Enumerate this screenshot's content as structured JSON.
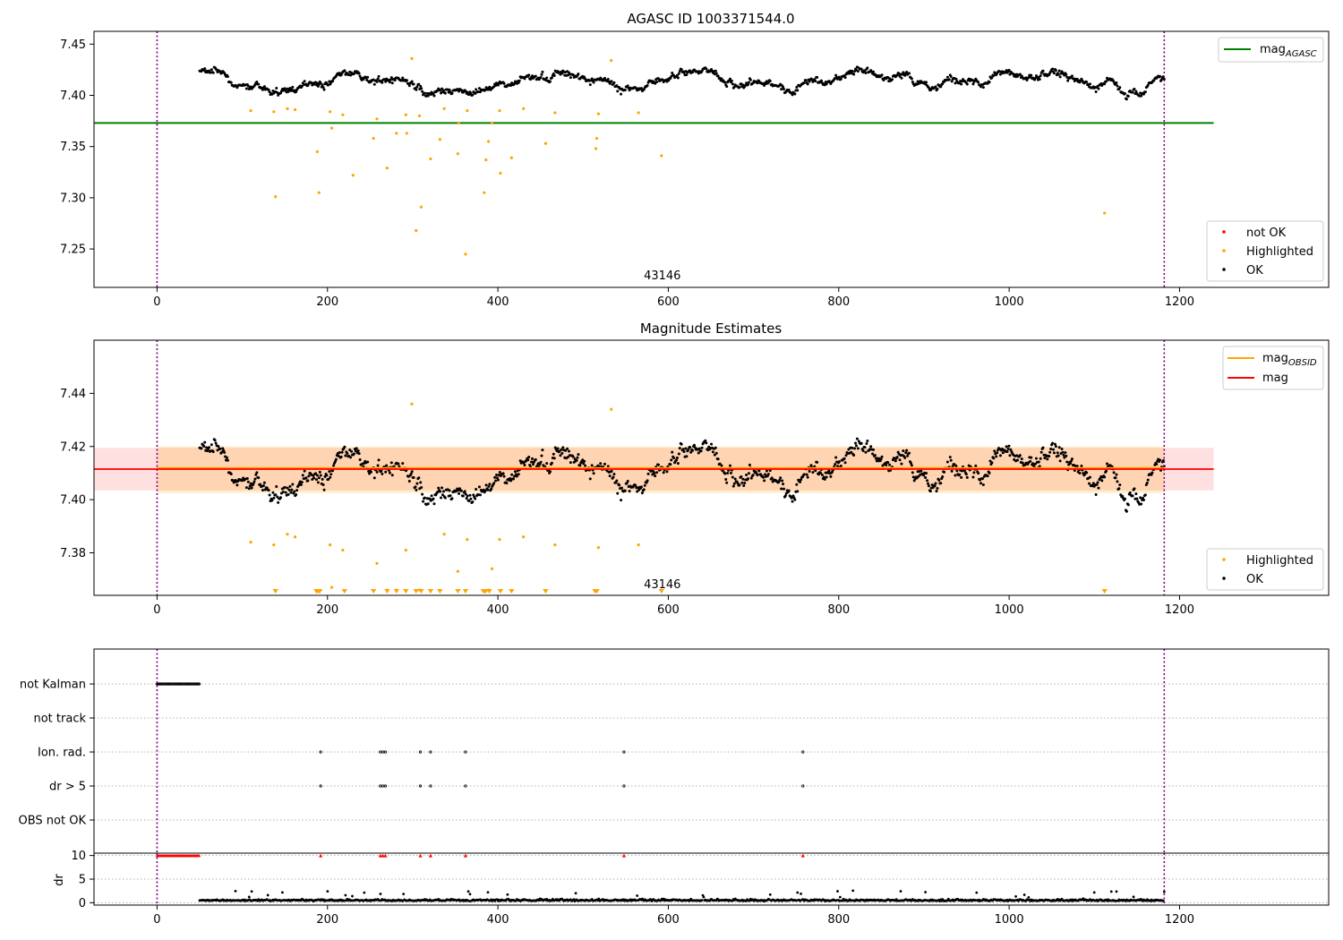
{
  "chart_data": [
    {
      "type": "scatter",
      "title": "AGASC ID 1003371544.0",
      "xlim": [
        -74,
        1375
      ],
      "ylim": [
        7.2125,
        7.4625
      ],
      "xticks": [
        0,
        200,
        400,
        600,
        800,
        1000,
        1200
      ],
      "yticks": [
        7.25,
        7.3,
        7.35,
        7.4,
        7.45
      ],
      "xtick_labels": [
        "0",
        "200",
        "400",
        "600",
        "800",
        "1000",
        "1200"
      ],
      "ytick_labels": [
        "7.25",
        "7.30",
        "7.35",
        "7.40",
        "7.45"
      ],
      "obsid_label": "43146",
      "obsid_label_x": 593,
      "obs_boundaries": [
        0,
        1182
      ],
      "mag_agasc": 7.373,
      "mag_agasc_xrange": [
        -74,
        1240
      ],
      "colors": {
        "ok": "#000000",
        "highlighted": "#ffa500",
        "not_ok": "#ff0000",
        "agasc_line": "#008000",
        "boundary": "#800080"
      },
      "legend_top": {
        "placement": "top-right",
        "entries": [
          {
            "label": "mag",
            "sub": "AGASC",
            "color": "#008000"
          }
        ]
      },
      "legend_bottom": {
        "placement": "lower-right",
        "entries": [
          {
            "label": "not OK",
            "color": "#ff0000"
          },
          {
            "label": "Highlighted",
            "color": "#ffa500"
          },
          {
            "label": "OK",
            "color": "#000000"
          }
        ]
      },
      "highlighted_points": [
        [
          110,
          7.385
        ],
        [
          137,
          7.384
        ],
        [
          139,
          7.301
        ],
        [
          153,
          7.387
        ],
        [
          162,
          7.386
        ],
        [
          188,
          7.345
        ],
        [
          190,
          7.305
        ],
        [
          203,
          7.384
        ],
        [
          205,
          7.368
        ],
        [
          218,
          7.381
        ],
        [
          230,
          7.322
        ],
        [
          254,
          7.358
        ],
        [
          258,
          7.377
        ],
        [
          270,
          7.329
        ],
        [
          281,
          7.363
        ],
        [
          292,
          7.381
        ],
        [
          293,
          7.363
        ],
        [
          299,
          7.436
        ],
        [
          304,
          7.268
        ],
        [
          308,
          7.38
        ],
        [
          310,
          7.291
        ],
        [
          321,
          7.338
        ],
        [
          332,
          7.357
        ],
        [
          337,
          7.387
        ],
        [
          353,
          7.343
        ],
        [
          354,
          7.373
        ],
        [
          362,
          7.245
        ],
        [
          364,
          7.385
        ],
        [
          384,
          7.305
        ],
        [
          386,
          7.337
        ],
        [
          389,
          7.355
        ],
        [
          393,
          7.373
        ],
        [
          402,
          7.385
        ],
        [
          403,
          7.324
        ],
        [
          416,
          7.339
        ],
        [
          430,
          7.387
        ],
        [
          456,
          7.353
        ],
        [
          467,
          7.383
        ],
        [
          515,
          7.348
        ],
        [
          516,
          7.358
        ],
        [
          518,
          7.382
        ],
        [
          533,
          7.434
        ],
        [
          565,
          7.383
        ],
        [
          592,
          7.341
        ],
        [
          1112,
          7.285
        ]
      ],
      "not_ok_points": [],
      "ok_base": 7.414
    },
    {
      "type": "scatter",
      "title": "Magnitude Estimates",
      "xlim": [
        -74,
        1375
      ],
      "ylim": [
        7.364,
        7.46
      ],
      "xticks": [
        0,
        200,
        400,
        600,
        800,
        1000,
        1200
      ],
      "yticks": [
        7.38,
        7.4,
        7.42,
        7.44
      ],
      "xtick_labels": [
        "0",
        "200",
        "400",
        "600",
        "800",
        "1000",
        "1200"
      ],
      "ytick_labels": [
        "7.38",
        "7.40",
        "7.42",
        "7.44"
      ],
      "obsid_label": "43146",
      "obsid_label_x": 593,
      "obs_boundaries": [
        0,
        1182
      ],
      "mag": 7.4115,
      "mag_band": [
        7.4035,
        7.4195
      ],
      "mag_xrange": [
        -74,
        1240
      ],
      "mag_obsid": 7.4115,
      "mag_obsid_band": [
        7.4025,
        7.42
      ],
      "mag_obsid_xrange": [
        0,
        1182
      ],
      "colors": {
        "ok": "#000000",
        "highlighted": "#ffa500",
        "mag": "#ff0000",
        "mag_obsid": "#ffa500",
        "boundary": "#800080"
      },
      "legend_top": {
        "placement": "top-right",
        "entries": [
          {
            "label": "mag",
            "sub": "OBSID",
            "color": "#ffa500"
          },
          {
            "label": "mag",
            "sub": "",
            "color": "#ff0000"
          }
        ]
      },
      "legend_bottom": {
        "placement": "lower-right",
        "entries": [
          {
            "label": "Highlighted",
            "color": "#ffa500"
          },
          {
            "label": "OK",
            "color": "#000000"
          }
        ]
      },
      "highlighted_points": [
        [
          110,
          7.384
        ],
        [
          137,
          7.383
        ],
        [
          153,
          7.387
        ],
        [
          162,
          7.386
        ],
        [
          203,
          7.383
        ],
        [
          205,
          7.367
        ],
        [
          218,
          7.381
        ],
        [
          258,
          7.376
        ],
        [
          270,
          7.366
        ],
        [
          281,
          7.366
        ],
        [
          292,
          7.381
        ],
        [
          299,
          7.436
        ],
        [
          308,
          7.366
        ],
        [
          337,
          7.387
        ],
        [
          353,
          7.373
        ],
        [
          364,
          7.385
        ],
        [
          389,
          7.366
        ],
        [
          393,
          7.374
        ],
        [
          402,
          7.385
        ],
        [
          430,
          7.386
        ],
        [
          467,
          7.383
        ],
        [
          518,
          7.382
        ],
        [
          533,
          7.434
        ],
        [
          565,
          7.383
        ]
      ],
      "below_range_markers": [
        139,
        187,
        188,
        190,
        191,
        220,
        254,
        270,
        281,
        292,
        304,
        310,
        321,
        332,
        353,
        362,
        383,
        384,
        386,
        390,
        403,
        416,
        456,
        514,
        516,
        592,
        1112
      ],
      "ok_base": 7.411
    },
    {
      "type": "scatter",
      "xlim": [
        -74,
        1375
      ],
      "xticks": [
        0,
        200,
        400,
        600,
        800,
        1000,
        1200
      ],
      "xtick_labels": [
        "0",
        "200",
        "400",
        "600",
        "800",
        "1000",
        "1200"
      ],
      "obs_boundaries": [
        0,
        1182
      ],
      "flag_categories": [
        "not Kalman",
        "not track",
        "Ion. rad.",
        "dr > 5",
        "OBS not OK"
      ],
      "flag_points": {
        "not Kalman": {
          "from": 0,
          "to": 50
        },
        "not track": [],
        "Ion. rad.": [
          192,
          262,
          265,
          268,
          309,
          321,
          362,
          548,
          758
        ],
        "dr > 5": [
          192,
          262,
          265,
          268,
          309,
          321,
          362,
          548,
          758
        ],
        "OBS not OK": []
      },
      "dr_ylabel": "dr",
      "dr_ylim": [
        -0.5,
        10.5
      ],
      "dr_yticks": [
        0,
        5,
        10
      ],
      "dr_ytick_labels": [
        "0",
        "5",
        "10"
      ],
      "dr_clip_value": 10,
      "dr_clipped": {
        "from": 0,
        "to": 50,
        "extra": [
          192,
          262,
          265,
          268,
          309,
          321,
          362,
          548,
          758
        ]
      },
      "dr_points_range": [
        50,
        1182
      ],
      "colors": {
        "flag": "#000000",
        "dr": "#000000",
        "dr_clipped": "#ff0000",
        "grid": "#b0b0b0",
        "boundary": "#800080"
      }
    }
  ]
}
